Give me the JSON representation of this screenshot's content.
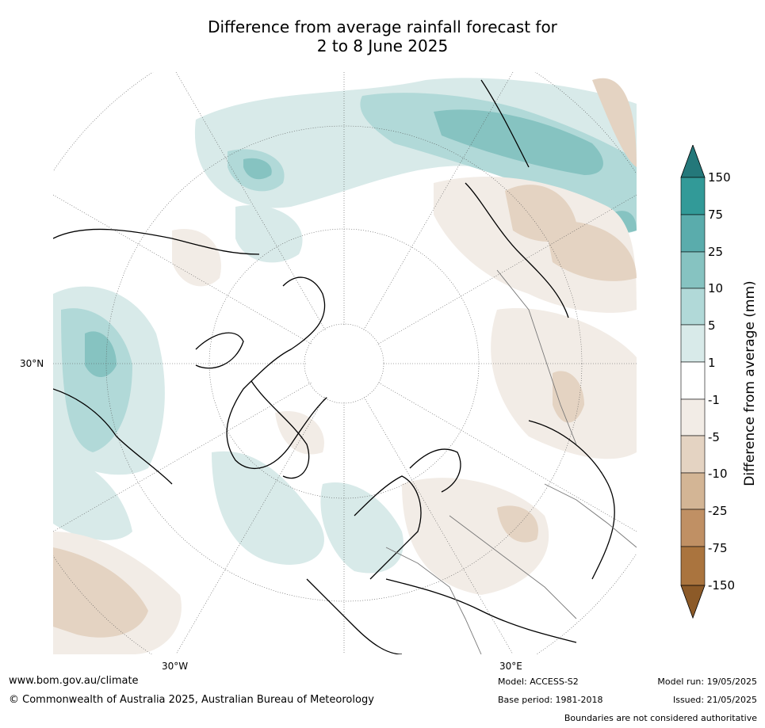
{
  "title_line1": "Difference from average rainfall forecast for",
  "title_line2": "2 to 8 June 2025",
  "map": {
    "lat_labels": [
      "30°N"
    ],
    "lon_labels": [
      "30°W",
      "30°E"
    ]
  },
  "colorbar": {
    "title": "Difference from average (mm)",
    "ticks": [
      "150",
      "75",
      "25",
      "10",
      "5",
      "1",
      "-1",
      "-5",
      "-10",
      "-25",
      "-75",
      "-150"
    ],
    "colors": {
      "over": "#24787a",
      "b150_75": "#329a98",
      "b75_25": "#5aacac",
      "b25_10": "#86c3c1",
      "b10_5": "#b1d9d8",
      "b5_1": "#d8eae9",
      "b1_m1": "#ffffff",
      "bm1_m5": "#f2ece6",
      "bm5_m10": "#e4d3c2",
      "bm10_m25": "#d3b595",
      "bm25_m75": "#c09064",
      "bm75_m150": "#aa743e",
      "under": "#8c5a28"
    }
  },
  "footer": {
    "website": "www.bom.gov.au/climate",
    "copyright": "© Commonwealth of Australia 2025, Australian Bureau of Meteorology",
    "model": "Model: ACCESS-S2",
    "base_period": "Base period: 1981-2018",
    "model_run": "Model run: 19/05/2025",
    "issued": "Issued: 21/05/2025",
    "disclaimer": "Boundaries are not considered authoritative"
  }
}
